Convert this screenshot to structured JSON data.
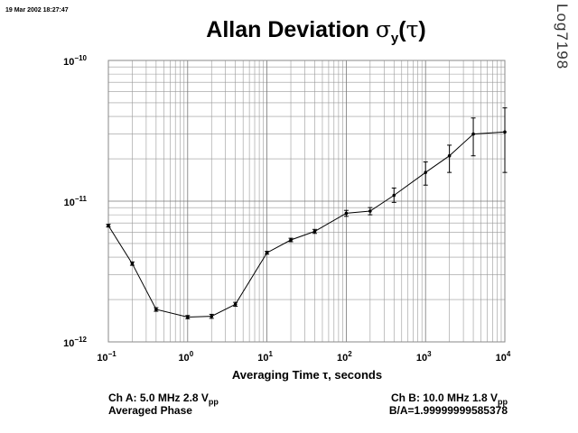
{
  "header": {
    "timestamp": "19 Mar 2002 18:27:47",
    "log_id": "Log7198",
    "title_text": "Allan Deviation",
    "title_symbol": "σ",
    "title_sub": "y",
    "title_paren_open": "(",
    "title_tau": "τ",
    "title_paren_close": ")"
  },
  "footer": {
    "ch_a_prefix": "Ch A: 5.0 MHz 2.8 V",
    "ch_a_sub": "pp",
    "ch_b_prefix": "Ch B: 10.0 MHz 1.8 V",
    "ch_b_sub": "pp",
    "averaged": "Averaged Phase",
    "ratio": "B/A=1.99999999585378"
  },
  "chart_data": {
    "type": "line",
    "title": "Allan Deviation σy(τ)",
    "xlabel": "Averaging Time τ, seconds",
    "ylabel": "",
    "x_scale": "log",
    "y_scale": "log",
    "xlim": [
      0.1,
      10000
    ],
    "ylim": [
      1e-12,
      1e-10
    ],
    "grid": true,
    "x_ticks": [
      {
        "base": "10",
        "exp": "−1"
      },
      {
        "base": "10",
        "exp": "0"
      },
      {
        "base": "10",
        "exp": "1"
      },
      {
        "base": "10",
        "exp": "2"
      },
      {
        "base": "10",
        "exp": "3"
      },
      {
        "base": "10",
        "exp": "4"
      }
    ],
    "y_ticks": [
      {
        "value": 1e-10,
        "base": "10",
        "exp": "−10"
      },
      {
        "value": 1e-11,
        "base": "10",
        "exp": "−11"
      },
      {
        "value": 1e-12,
        "base": "10",
        "exp": "−12"
      }
    ],
    "x": [
      0.1,
      0.2,
      0.4,
      1,
      2,
      4,
      10,
      20,
      40,
      100,
      200,
      400,
      1000,
      2000,
      4000,
      10000
    ],
    "y": [
      6.7e-12,
      3.6e-12,
      1.7e-12,
      1.5e-12,
      1.52e-12,
      1.85e-12,
      4.3e-12,
      5.3e-12,
      6.1e-12,
      8.2e-12,
      8.5e-12,
      1.1e-11,
      1.6e-11,
      2.1e-11,
      3e-11,
      3.1e-11
    ],
    "y_err_low": [
      6.55e-12,
      3.5e-12,
      1.65e-12,
      1.46e-12,
      1.47e-12,
      1.79e-12,
      4.2e-12,
      5.15e-12,
      5.9e-12,
      7.8e-12,
      8e-12,
      9.8e-12,
      1.3e-11,
      1.6e-11,
      2.1e-11,
      1.6e-11
    ],
    "y_err_high": [
      6.85e-12,
      3.7e-12,
      1.75e-12,
      1.54e-12,
      1.57e-12,
      1.91e-12,
      4.4e-12,
      5.45e-12,
      6.3e-12,
      8.6e-12,
      9e-12,
      1.24e-11,
      1.9e-11,
      2.5e-11,
      3.9e-11,
      4.6e-11
    ],
    "color": "#000000"
  }
}
